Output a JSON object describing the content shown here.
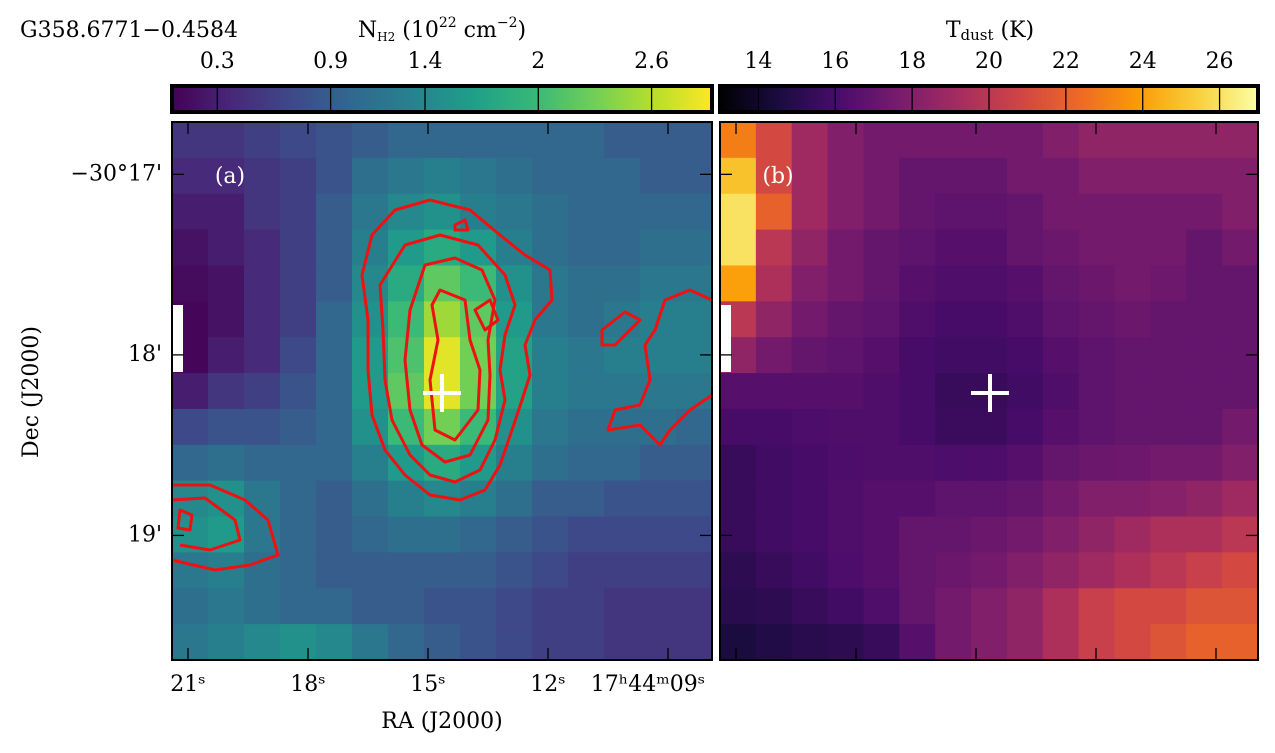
{
  "chart_data": [
    {
      "type": "heatmap",
      "title": "G358.6771−0.4584",
      "panel_label": "(a)",
      "x_label": "RA (J2000)",
      "y_label": "Dec (J2000)",
      "xlim": [
        21.4,
        7.9
      ],
      "xticks": [
        {
          "value": 21,
          "label": "21ˢ"
        },
        {
          "value": 18,
          "label": "18ˢ"
        },
        {
          "value": 15,
          "label": "15ˢ"
        },
        {
          "value": 12,
          "label": "12ˢ"
        },
        {
          "value": 9,
          "label": "17ʰ44ᵐ09ˢ"
        }
      ],
      "ylim": [
        19.69,
        16.71
      ],
      "yticks": [
        {
          "value": 17,
          "label": "−30°17'"
        },
        {
          "value": 18,
          "label": "18'"
        },
        {
          "value": 19,
          "label": "19'"
        }
      ],
      "colormap": "viridis",
      "colorbar": {
        "label": [
          "N",
          "H2",
          " (10",
          "22",
          " cm",
          "−2",
          ")"
        ],
        "lim": [
          0.06,
          2.92
        ],
        "ticks": [
          0.3,
          0.9,
          1.4,
          2.0,
          2.6
        ]
      },
      "z": [
        [
          0.5,
          0.5,
          0.6,
          0.7,
          0.8,
          0.9,
          1.0,
          1.0,
          1.0,
          1.0,
          1.0,
          1.0,
          0.9,
          0.9,
          0.9
        ],
        [
          0.4,
          0.4,
          0.5,
          0.6,
          0.8,
          1.1,
          1.2,
          1.3,
          1.2,
          1.1,
          1.0,
          1.0,
          1.0,
          0.9,
          0.9
        ],
        [
          0.3,
          0.3,
          0.5,
          0.6,
          0.9,
          1.2,
          1.4,
          1.5,
          1.3,
          1.2,
          1.1,
          1.0,
          1.0,
          1.0,
          1.0
        ],
        [
          0.2,
          0.3,
          0.4,
          0.6,
          0.9,
          1.3,
          1.6,
          1.8,
          1.6,
          1.3,
          1.1,
          1.0,
          1.0,
          1.1,
          1.1
        ],
        [
          0.15,
          0.2,
          0.4,
          0.6,
          0.9,
          1.4,
          1.8,
          2.2,
          2.0,
          1.5,
          1.2,
          1.1,
          1.1,
          1.2,
          1.2
        ],
        [
          0.1,
          0.2,
          0.4,
          0.6,
          1.0,
          1.5,
          2.0,
          2.5,
          2.2,
          1.6,
          1.2,
          1.1,
          1.2,
          1.3,
          1.3
        ],
        [
          0.1,
          0.3,
          0.4,
          0.7,
          1.0,
          1.6,
          2.1,
          2.8,
          2.3,
          1.7,
          1.3,
          1.2,
          1.3,
          1.3,
          1.3
        ],
        [
          0.3,
          0.5,
          0.6,
          0.8,
          1.0,
          1.6,
          2.2,
          2.8,
          2.3,
          1.7,
          1.3,
          1.2,
          1.2,
          1.2,
          1.2
        ],
        [
          0.7,
          0.8,
          0.8,
          0.9,
          1.0,
          1.5,
          2.0,
          2.3,
          2.0,
          1.5,
          1.2,
          1.1,
          1.1,
          1.1,
          1.0
        ],
        [
          1.0,
          1.1,
          1.0,
          1.0,
          1.0,
          1.3,
          1.6,
          1.8,
          1.6,
          1.3,
          1.1,
          1.0,
          1.0,
          0.9,
          0.9
        ],
        [
          1.4,
          1.5,
          1.2,
          1.0,
          0.9,
          1.1,
          1.3,
          1.4,
          1.3,
          1.1,
          0.9,
          0.9,
          0.8,
          0.8,
          0.8
        ],
        [
          1.5,
          1.6,
          1.2,
          1.0,
          0.9,
          1.0,
          1.1,
          1.1,
          1.0,
          0.9,
          0.8,
          0.7,
          0.7,
          0.7,
          0.7
        ],
        [
          1.2,
          1.3,
          1.1,
          1.0,
          0.9,
          0.9,
          0.9,
          0.9,
          0.9,
          0.8,
          0.7,
          0.6,
          0.6,
          0.6,
          0.6
        ],
        [
          1.1,
          1.2,
          1.1,
          1.0,
          1.0,
          0.9,
          0.9,
          0.8,
          0.8,
          0.7,
          0.6,
          0.6,
          0.5,
          0.5,
          0.5
        ],
        [
          1.2,
          1.3,
          1.4,
          1.5,
          1.4,
          1.2,
          1.0,
          0.9,
          0.8,
          0.7,
          0.6,
          0.6,
          0.5,
          0.5,
          0.5
        ]
      ]
    },
    {
      "type": "heatmap",
      "panel_label": "(b)",
      "colormap": "inferno",
      "colorbar": {
        "label": [
          "T",
          "dust",
          " (K)"
        ],
        "lim": [
          13,
          27
        ],
        "ticks": [
          14,
          16,
          18,
          20,
          22,
          24,
          26
        ]
      },
      "z": [
        [
          23,
          21,
          19,
          18,
          17.5,
          17.5,
          17.5,
          17.5,
          17.5,
          18,
          18.5,
          18.5,
          18.5,
          18.5,
          18.5
        ],
        [
          25,
          21,
          19,
          18,
          17.5,
          17,
          17,
          17,
          17.5,
          17.5,
          18,
          18,
          18,
          18,
          18
        ],
        [
          26,
          22,
          19,
          18,
          17.5,
          17,
          16.8,
          16.8,
          17,
          17.5,
          17.5,
          17.5,
          17.5,
          17.5,
          18
        ],
        [
          26,
          20,
          18.5,
          17.5,
          17,
          16.8,
          16.5,
          16.5,
          17,
          17.2,
          17.5,
          17.5,
          17.5,
          17,
          17.5
        ],
        [
          24,
          19.5,
          18,
          17.5,
          17,
          16.5,
          16.3,
          16.3,
          16.5,
          17,
          17.2,
          17.5,
          17.3,
          17,
          17
        ],
        [
          20,
          18.5,
          17.5,
          17,
          16.8,
          16.3,
          16,
          16,
          16.3,
          16.8,
          17,
          17.2,
          17,
          17,
          17
        ],
        [
          18.5,
          17.5,
          17,
          16.8,
          16.5,
          16,
          15.8,
          15.8,
          16,
          16.5,
          16.8,
          17,
          17,
          17,
          17
        ],
        [
          16.5,
          16.5,
          16.5,
          16.5,
          16.3,
          16,
          15.5,
          15.5,
          15.8,
          16.3,
          16.8,
          17,
          17,
          17,
          17
        ],
        [
          16,
          16,
          16.2,
          16.3,
          16.3,
          16,
          15.6,
          15.6,
          16,
          16.5,
          16.8,
          17,
          17,
          17,
          17.5
        ],
        [
          15.5,
          15.8,
          16,
          16.2,
          16.3,
          16.3,
          16.2,
          16.2,
          16.5,
          17,
          17.2,
          17.3,
          17.5,
          17.5,
          18
        ],
        [
          15.5,
          15.8,
          16,
          16.3,
          16.5,
          16.5,
          16.8,
          16.8,
          17,
          17.5,
          18,
          18,
          18.2,
          18.5,
          19
        ],
        [
          15.5,
          15.8,
          16,
          16.3,
          16.5,
          17,
          17,
          17.2,
          17.5,
          18,
          18.5,
          19,
          19.5,
          19.5,
          20
        ],
        [
          15.2,
          15.5,
          15.8,
          16.2,
          16.5,
          17,
          17.2,
          17.5,
          18,
          18.5,
          19,
          19.5,
          20,
          20.5,
          21
        ],
        [
          15,
          15.2,
          15.5,
          15.8,
          16.3,
          17,
          17.5,
          18,
          18.5,
          19.5,
          20.5,
          21,
          21,
          21.5,
          21.5
        ],
        [
          14.5,
          14.8,
          15,
          15.2,
          15.5,
          16.5,
          17.5,
          18,
          18.5,
          19.5,
          20.5,
          21,
          21.5,
          22,
          22
        ]
      ]
    }
  ]
}
